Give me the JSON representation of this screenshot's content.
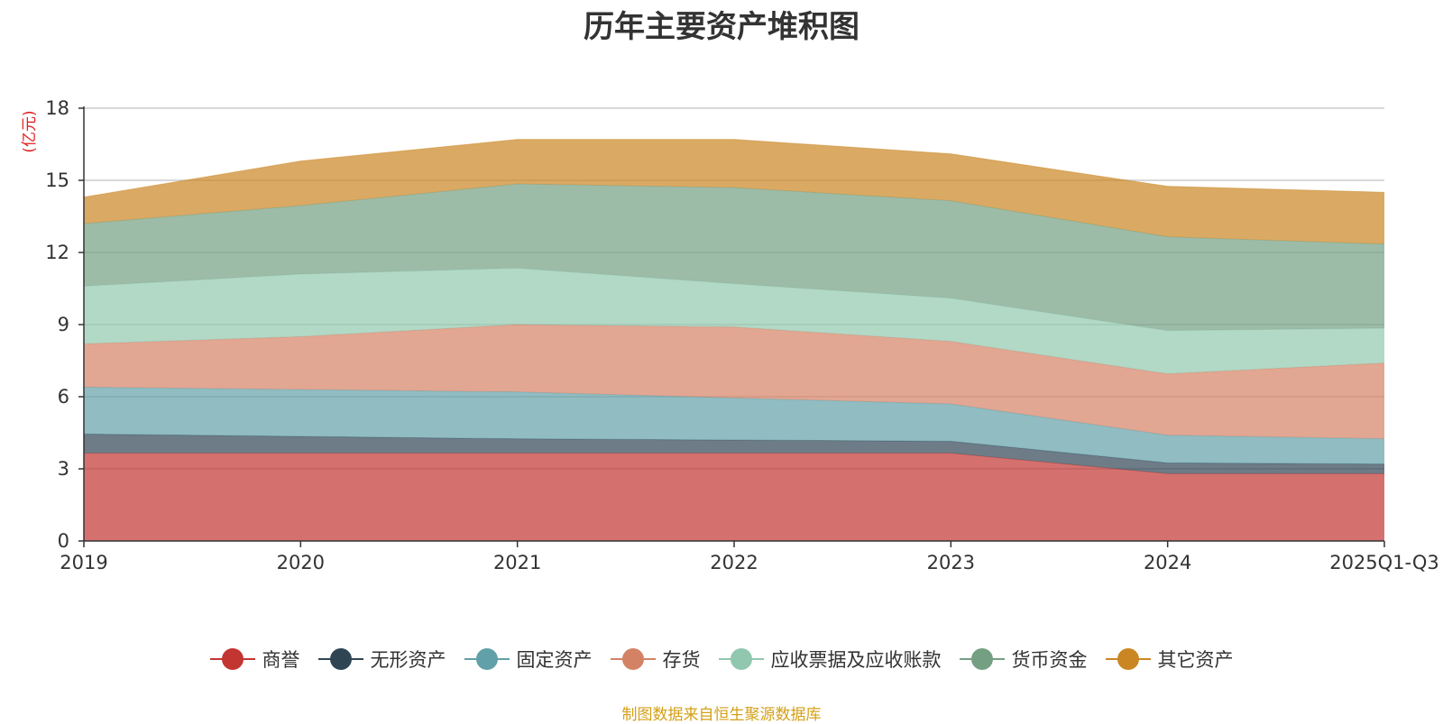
{
  "chart_data": {
    "type": "area",
    "stacked": true,
    "title": "历年主要资产堆积图",
    "ylabel": "(亿元)",
    "xlabel": "",
    "ylim": [
      0,
      18
    ],
    "yticks": [
      0,
      3,
      6,
      9,
      12,
      15,
      18
    ],
    "categories": [
      "2019",
      "2020",
      "2021",
      "2022",
      "2023",
      "2024",
      "2025Q1-Q3"
    ],
    "grid": true,
    "legend_position": "bottom",
    "series": [
      {
        "name": "商誉",
        "color": "#c23531",
        "values": [
          3.65,
          3.65,
          3.65,
          3.65,
          3.65,
          2.8,
          2.8
        ]
      },
      {
        "name": "无形资产",
        "color": "#2f4554",
        "values": [
          0.8,
          0.7,
          0.6,
          0.55,
          0.5,
          0.45,
          0.4
        ]
      },
      {
        "name": "固定资产",
        "color": "#61a0a8",
        "values": [
          1.95,
          1.95,
          1.95,
          1.75,
          1.55,
          1.15,
          1.05
        ]
      },
      {
        "name": "存货",
        "color": "#d48265",
        "values": [
          1.8,
          2.2,
          2.8,
          2.95,
          2.6,
          2.55,
          3.15
        ]
      },
      {
        "name": "应收票据及应收账款",
        "color": "#91c7ae",
        "values": [
          2.4,
          2.6,
          2.35,
          1.8,
          1.8,
          1.8,
          1.45
        ]
      },
      {
        "name": "货币资金",
        "color": "#749f83",
        "values": [
          2.6,
          2.85,
          3.5,
          4.0,
          4.05,
          3.9,
          3.5
        ]
      },
      {
        "name": "其它资产",
        "color": "#ca8622",
        "values": [
          1.1,
          1.85,
          1.85,
          2.0,
          1.95,
          2.1,
          2.15
        ]
      }
    ]
  },
  "source_text": "制图数据来自恒生聚源数据库"
}
